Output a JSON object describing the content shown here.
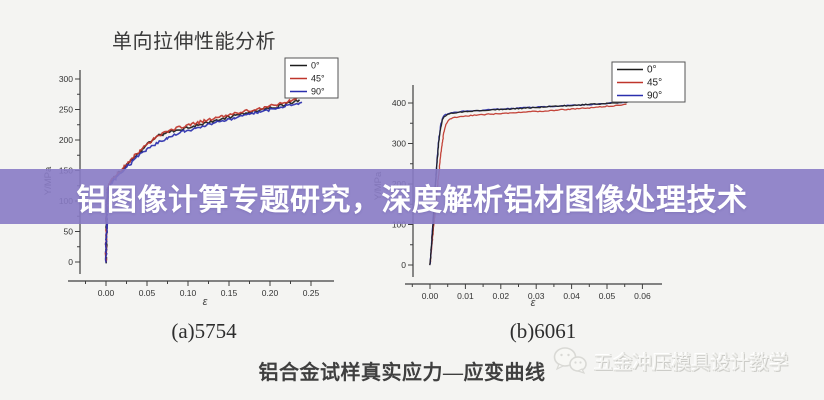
{
  "page": {
    "background_color": "#f4f4f2",
    "banner": {
      "text": "铝图像计算专题研究，深度解析铝材图像处理技术",
      "bg_color": "rgba(136,123,197,0.9)",
      "text_color": "#ffffff"
    },
    "footer_caption": "铝合金试样真实应力—应变曲线",
    "watermark": {
      "icon": "wechat-icon",
      "text": "五金冲压模具设计教学"
    }
  },
  "chart_data": [
    {
      "type": "line",
      "title": "单向拉伸性能分析",
      "caption": "(a)5754",
      "xlabel": "ε",
      "ylabel": "Y/MPa",
      "xlim": [
        0,
        0.25
      ],
      "ylim": [
        0,
        300
      ],
      "grid": false,
      "x_ticks": [
        "0.00",
        "0.05",
        "0.10",
        "0.15",
        "0.20",
        "0.25"
      ],
      "y_ticks": [
        "0",
        "50",
        "100",
        "150",
        "200",
        "250",
        "300"
      ],
      "legend": {
        "position": "top-right",
        "entries": [
          {
            "label": "0°",
            "color": "#1c1c1c"
          },
          {
            "label": "45°",
            "color": "#bf352b"
          },
          {
            "label": "90°",
            "color": "#2a2fae"
          }
        ]
      },
      "series": [
        {
          "name": "0°",
          "color": "#1c1c1c",
          "points": [
            [
              0,
              0
            ],
            [
              0.0004,
              40
            ],
            [
              0.0008,
              75
            ],
            [
              0.0013,
              100
            ],
            [
              0.002,
              118
            ],
            [
              0.004,
              127
            ],
            [
              0.007,
              134
            ],
            [
              0.011,
              140
            ],
            [
              0.016,
              146
            ],
            [
              0.02,
              150
            ],
            [
              0.03,
              165
            ],
            [
              0.04,
              178
            ],
            [
              0.048,
              189
            ],
            [
              0.056,
              200
            ],
            [
              0.065,
              207
            ],
            [
              0.075,
              212
            ],
            [
              0.085,
              216
            ],
            [
              0.1,
              221
            ],
            [
              0.115,
              226
            ],
            [
              0.13,
              231
            ],
            [
              0.145,
              236
            ],
            [
              0.16,
              241
            ],
            [
              0.175,
              245
            ],
            [
              0.19,
              250
            ],
            [
              0.205,
              254
            ],
            [
              0.22,
              259
            ],
            [
              0.23,
              263
            ],
            [
              0.236,
              266
            ]
          ]
        },
        {
          "name": "45°",
          "color": "#bf352b",
          "points": [
            [
              0,
              0
            ],
            [
              0.0004,
              40
            ],
            [
              0.0009,
              78
            ],
            [
              0.0014,
              102
            ],
            [
              0.002,
              119
            ],
            [
              0.004,
              129
            ],
            [
              0.008,
              137
            ],
            [
              0.013,
              143
            ],
            [
              0.02,
              152
            ],
            [
              0.03,
              168
            ],
            [
              0.04,
              181
            ],
            [
              0.05,
              192
            ],
            [
              0.06,
              203
            ],
            [
              0.075,
              215
            ],
            [
              0.09,
              221
            ],
            [
              0.105,
              226
            ],
            [
              0.12,
              231
            ],
            [
              0.14,
              238
            ],
            [
              0.16,
              244
            ],
            [
              0.18,
              250
            ],
            [
              0.2,
              256
            ],
            [
              0.215,
              260
            ],
            [
              0.228,
              266
            ],
            [
              0.233,
              269
            ]
          ]
        },
        {
          "name": "90°",
          "color": "#2a2fae",
          "points": [
            [
              0,
              0
            ],
            [
              0.0005,
              38
            ],
            [
              0.001,
              72
            ],
            [
              0.0015,
              98
            ],
            [
              0.002,
              115
            ],
            [
              0.004,
              125
            ],
            [
              0.008,
              133
            ],
            [
              0.013,
              139
            ],
            [
              0.02,
              148
            ],
            [
              0.03,
              162
            ],
            [
              0.04,
              175
            ],
            [
              0.05,
              184
            ],
            [
              0.06,
              193
            ],
            [
              0.075,
              204
            ],
            [
              0.09,
              212
            ],
            [
              0.105,
              218
            ],
            [
              0.12,
              224
            ],
            [
              0.14,
              230
            ],
            [
              0.16,
              237
            ],
            [
              0.18,
              244
            ],
            [
              0.2,
              250
            ],
            [
              0.22,
              256
            ],
            [
              0.23,
              259
            ],
            [
              0.239,
              262
            ]
          ]
        }
      ]
    },
    {
      "type": "line",
      "title": "",
      "caption": "(b)6061",
      "xlabel": "ε",
      "ylabel": "Y/MPa",
      "xlim": [
        0,
        0.06
      ],
      "ylim": [
        0,
        400
      ],
      "grid": false,
      "x_ticks": [
        "0.00",
        "0.01",
        "0.02",
        "0.03",
        "0.04",
        "0.05",
        "0.06"
      ],
      "y_ticks": [
        "0",
        "100",
        "200",
        "300",
        "400"
      ],
      "legend": {
        "position": "top-right",
        "entries": [
          {
            "label": "0°",
            "color": "#1c1c1c"
          },
          {
            "label": "45°",
            "color": "#bf352b"
          },
          {
            "label": "90°",
            "color": "#2a2fae"
          }
        ]
      },
      "series": [
        {
          "name": "0°",
          "color": "#1c1c1c",
          "points": [
            [
              0,
              0
            ],
            [
              0.0008,
              95
            ],
            [
              0.0015,
              190
            ],
            [
              0.002,
              255
            ],
            [
              0.0025,
              305
            ],
            [
              0.003,
              340
            ],
            [
              0.0035,
              358
            ],
            [
              0.004,
              366
            ],
            [
              0.005,
              372
            ],
            [
              0.006,
              374
            ],
            [
              0.008,
              377
            ],
            [
              0.01,
              379
            ],
            [
              0.014,
              381
            ],
            [
              0.018,
              383
            ],
            [
              0.022,
              385
            ],
            [
              0.026,
              387
            ],
            [
              0.03,
              389
            ],
            [
              0.034,
              391
            ],
            [
              0.038,
              393
            ],
            [
              0.042,
              395
            ],
            [
              0.046,
              397
            ],
            [
              0.05,
              399
            ],
            [
              0.053,
              401
            ],
            [
              0.0565,
              403
            ]
          ]
        },
        {
          "name": "45°",
          "color": "#bf352b",
          "points": [
            [
              0,
              0
            ],
            [
              0.001,
              90
            ],
            [
              0.002,
              185
            ],
            [
              0.003,
              268
            ],
            [
              0.0035,
              305
            ],
            [
              0.004,
              330
            ],
            [
              0.0045,
              347
            ],
            [
              0.005,
              356
            ],
            [
              0.006,
              362
            ],
            [
              0.008,
              366
            ],
            [
              0.01,
              368
            ],
            [
              0.014,
              371
            ],
            [
              0.018,
              373
            ],
            [
              0.022,
              375
            ],
            [
              0.026,
              377
            ],
            [
              0.03,
              379
            ],
            [
              0.034,
              381
            ],
            [
              0.038,
              384
            ],
            [
              0.042,
              386
            ],
            [
              0.046,
              389
            ],
            [
              0.05,
              392
            ],
            [
              0.053,
              394
            ],
            [
              0.0555,
              397
            ]
          ]
        },
        {
          "name": "90°",
          "color": "#2a2fae",
          "points": [
            [
              0,
              0
            ],
            [
              0.0008,
              98
            ],
            [
              0.0015,
              195
            ],
            [
              0.002,
              260
            ],
            [
              0.0025,
              312
            ],
            [
              0.003,
              345
            ],
            [
              0.0035,
              362
            ],
            [
              0.004,
              369
            ],
            [
              0.005,
              374
            ],
            [
              0.007,
              377
            ],
            [
              0.01,
              380
            ],
            [
              0.014,
              382
            ],
            [
              0.018,
              384
            ],
            [
              0.022,
              386
            ],
            [
              0.026,
              388
            ],
            [
              0.03,
              390
            ],
            [
              0.035,
              392
            ],
            [
              0.04,
              394
            ],
            [
              0.045,
              396
            ],
            [
              0.05,
              399
            ],
            [
              0.053,
              401
            ],
            [
              0.0565,
              404
            ]
          ]
        }
      ]
    }
  ]
}
